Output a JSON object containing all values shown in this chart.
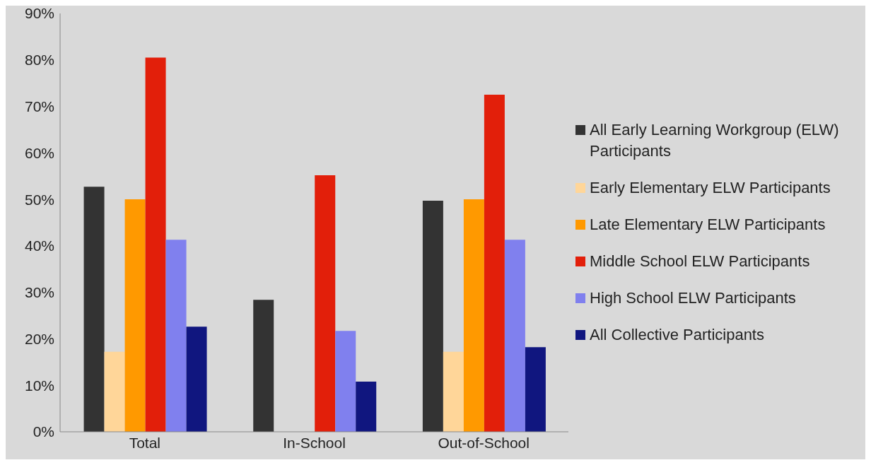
{
  "chart_data": {
    "type": "bar",
    "categories": [
      "Total",
      "In-School",
      "Out-of-School"
    ],
    "series": [
      {
        "name": "All Early Learning Workgroup (ELW) Participants",
        "color": "#333333",
        "values": [
          52.7,
          28.4,
          49.7
        ]
      },
      {
        "name": "Early Elementary ELW Participants",
        "color": "#ffd699",
        "values": [
          17.2,
          null,
          17.2
        ]
      },
      {
        "name": "Late Elementary ELW Participants",
        "color": "#ff9900",
        "values": [
          50,
          null,
          50
        ]
      },
      {
        "name": "Middle School ELW Participants",
        "color": "#e21f0a",
        "values": [
          80.5,
          55.2,
          72.5
        ]
      },
      {
        "name": "High School ELW Participants",
        "color": "#8080ee",
        "values": [
          41.3,
          21.7,
          41.3
        ]
      },
      {
        "name": "All Collective Participants",
        "color": "#10167f",
        "values": [
          22.6,
          10.8,
          18.2
        ]
      }
    ],
    "ylim": [
      0,
      90
    ],
    "yticks": [
      {
        "value": 0,
        "label": "0%"
      },
      {
        "value": 10,
        "label": "10%"
      },
      {
        "value": 20,
        "label": "20%"
      },
      {
        "value": 30,
        "label": "30%"
      },
      {
        "value": 40,
        "label": "40%"
      },
      {
        "value": 50,
        "label": "50%"
      },
      {
        "value": 60,
        "label": "60%"
      },
      {
        "value": 70,
        "label": "70%"
      },
      {
        "value": 80,
        "label": "80%"
      },
      {
        "value": 90,
        "label": "90%"
      }
    ],
    "grid": false,
    "legend": "right"
  }
}
